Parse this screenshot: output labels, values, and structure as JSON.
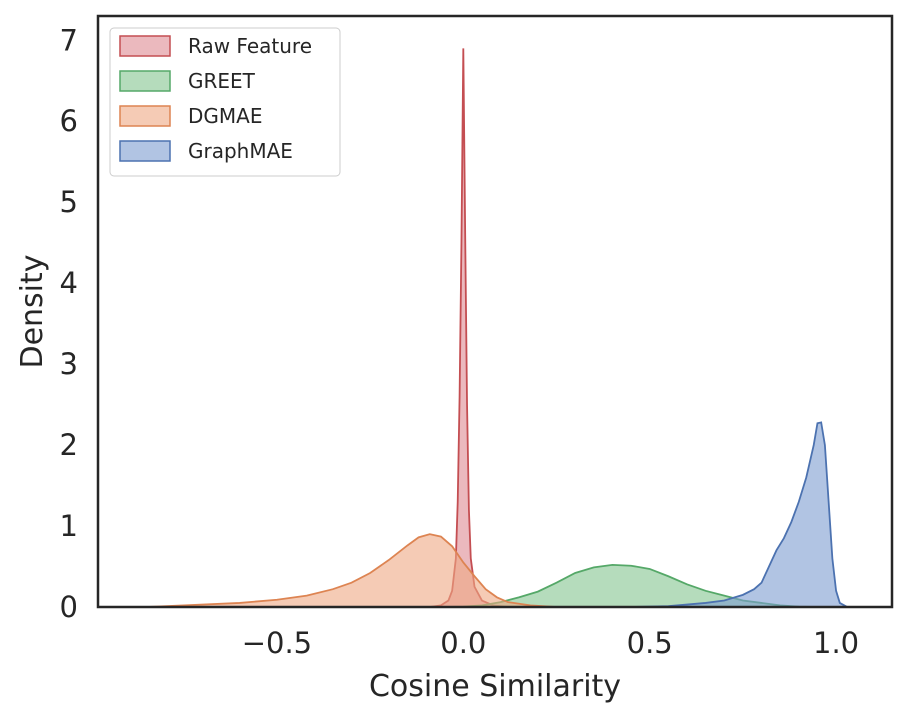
{
  "chart_data": {
    "type": "area",
    "xlabel": "Cosine Similarity",
    "ylabel": "Density",
    "xlim": [
      -0.98,
      1.15
    ],
    "ylim": [
      0,
      7.3
    ],
    "xticks": [
      -0.5,
      0.0,
      0.5,
      1.0
    ],
    "xtick_labels": [
      "−0.5",
      "0.0",
      "0.5",
      "1.0"
    ],
    "yticks": [
      0,
      1,
      2,
      3,
      4,
      5,
      6,
      7
    ],
    "ytick_labels": [
      "0",
      "1",
      "2",
      "3",
      "4",
      "5",
      "6",
      "7"
    ],
    "grid": false,
    "legend_position": "top-left",
    "series": [
      {
        "name": "Raw Feature",
        "fill": "#dd8a92",
        "stroke": "#c44e52",
        "points": [
          [
            -0.09,
            0.0
          ],
          [
            -0.06,
            0.02
          ],
          [
            -0.04,
            0.08
          ],
          [
            -0.03,
            0.2
          ],
          [
            -0.02,
            0.6
          ],
          [
            -0.015,
            1.3
          ],
          [
            -0.01,
            2.6
          ],
          [
            -0.005,
            4.5
          ],
          [
            0.0,
            6.9
          ],
          [
            0.005,
            4.6
          ],
          [
            0.01,
            2.5
          ],
          [
            0.015,
            1.2
          ],
          [
            0.02,
            0.6
          ],
          [
            0.03,
            0.25
          ],
          [
            0.05,
            0.08
          ],
          [
            0.08,
            0.02
          ],
          [
            0.12,
            0.0
          ]
        ]
      },
      {
        "name": "GREET",
        "fill": "#84c590",
        "stroke": "#55a868",
        "points": [
          [
            -0.05,
            0.0
          ],
          [
            0.0,
            0.005
          ],
          [
            0.05,
            0.02
          ],
          [
            0.1,
            0.06
          ],
          [
            0.15,
            0.12
          ],
          [
            0.2,
            0.19
          ],
          [
            0.25,
            0.3
          ],
          [
            0.3,
            0.42
          ],
          [
            0.35,
            0.49
          ],
          [
            0.4,
            0.52
          ],
          [
            0.45,
            0.51
          ],
          [
            0.5,
            0.47
          ],
          [
            0.55,
            0.38
          ],
          [
            0.6,
            0.28
          ],
          [
            0.65,
            0.2
          ],
          [
            0.7,
            0.14
          ],
          [
            0.75,
            0.08
          ],
          [
            0.8,
            0.05
          ],
          [
            0.85,
            0.02
          ],
          [
            0.9,
            0.005
          ],
          [
            0.95,
            0.0
          ]
        ]
      },
      {
        "name": "DGMAE",
        "fill": "#eea884",
        "stroke": "#dd8452",
        "points": [
          [
            -0.85,
            0.0
          ],
          [
            -0.75,
            0.02
          ],
          [
            -0.6,
            0.05
          ],
          [
            -0.5,
            0.09
          ],
          [
            -0.42,
            0.14
          ],
          [
            -0.35,
            0.22
          ],
          [
            -0.3,
            0.3
          ],
          [
            -0.25,
            0.42
          ],
          [
            -0.2,
            0.58
          ],
          [
            -0.15,
            0.76
          ],
          [
            -0.12,
            0.86
          ],
          [
            -0.09,
            0.9
          ],
          [
            -0.06,
            0.87
          ],
          [
            -0.03,
            0.75
          ],
          [
            0.0,
            0.55
          ],
          [
            0.03,
            0.38
          ],
          [
            0.06,
            0.22
          ],
          [
            0.09,
            0.12
          ],
          [
            0.12,
            0.06
          ],
          [
            0.18,
            0.02
          ],
          [
            0.25,
            0.0
          ]
        ]
      },
      {
        "name": "GraphMAE",
        "fill": "#7d9cd0",
        "stroke": "#4c72b0",
        "points": [
          [
            0.45,
            0.0
          ],
          [
            0.55,
            0.01
          ],
          [
            0.6,
            0.03
          ],
          [
            0.65,
            0.05
          ],
          [
            0.7,
            0.08
          ],
          [
            0.75,
            0.15
          ],
          [
            0.78,
            0.22
          ],
          [
            0.8,
            0.3
          ],
          [
            0.82,
            0.5
          ],
          [
            0.84,
            0.7
          ],
          [
            0.86,
            0.85
          ],
          [
            0.88,
            1.05
          ],
          [
            0.9,
            1.3
          ],
          [
            0.92,
            1.6
          ],
          [
            0.94,
            2.0
          ],
          [
            0.95,
            2.27
          ],
          [
            0.96,
            2.28
          ],
          [
            0.97,
            2.0
          ],
          [
            0.98,
            1.3
          ],
          [
            0.99,
            0.6
          ],
          [
            1.0,
            0.2
          ],
          [
            1.01,
            0.05
          ],
          [
            1.03,
            0.0
          ]
        ]
      }
    ]
  }
}
